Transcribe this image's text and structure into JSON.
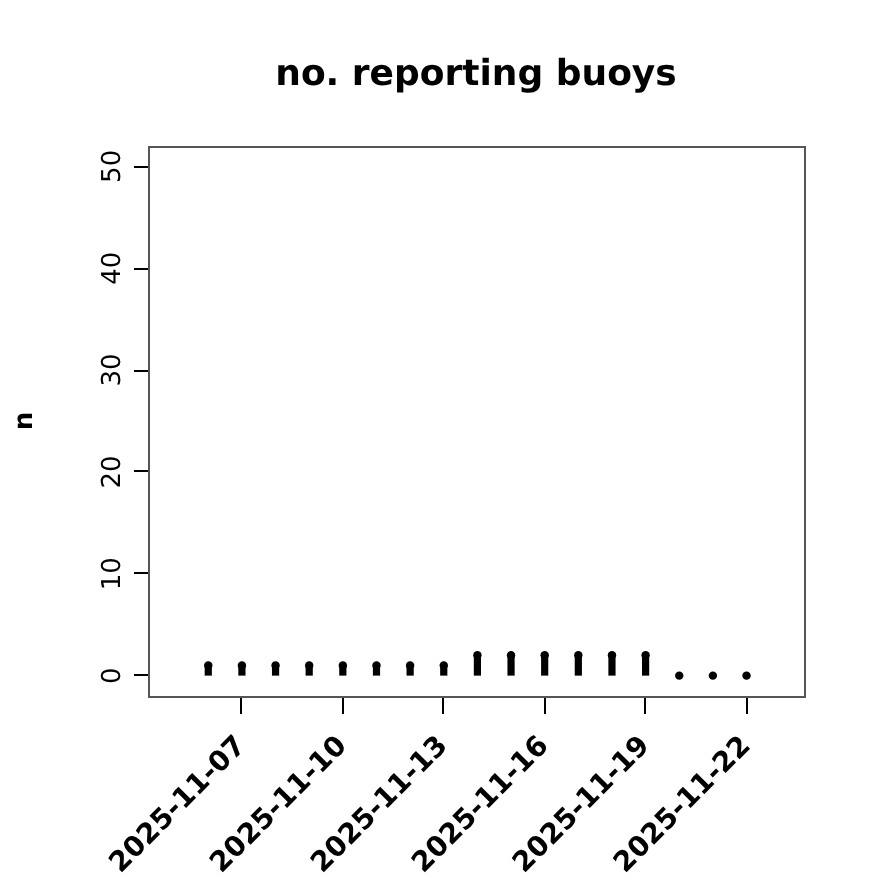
{
  "chart_data": {
    "type": "lollipop",
    "title": "no. reporting buoys",
    "ylabel": "n",
    "x": [
      "2025-11-06",
      "2025-11-07",
      "2025-11-08",
      "2025-11-09",
      "2025-11-10",
      "2025-11-11",
      "2025-11-12",
      "2025-11-13",
      "2025-11-14",
      "2025-11-15",
      "2025-11-16",
      "2025-11-17",
      "2025-11-18",
      "2025-11-19",
      "2025-11-20",
      "2025-11-21",
      "2025-11-22"
    ],
    "values": [
      1,
      1,
      1,
      1,
      1,
      1,
      1,
      1,
      2,
      2,
      2,
      2,
      2,
      2,
      0,
      0,
      0
    ],
    "color": "#000000",
    "marker": "circle",
    "xlim": [
      "2025-11-04T05:00",
      "2025-11-23T17:00"
    ],
    "xticks": [
      "2025-11-07",
      "2025-11-10",
      "2025-11-13",
      "2025-11-16",
      "2025-11-19",
      "2025-11-22"
    ],
    "ylim": [
      -2,
      52
    ],
    "yticks": [
      0,
      10,
      20,
      30,
      40,
      50
    ],
    "grid": false,
    "legend": false
  }
}
